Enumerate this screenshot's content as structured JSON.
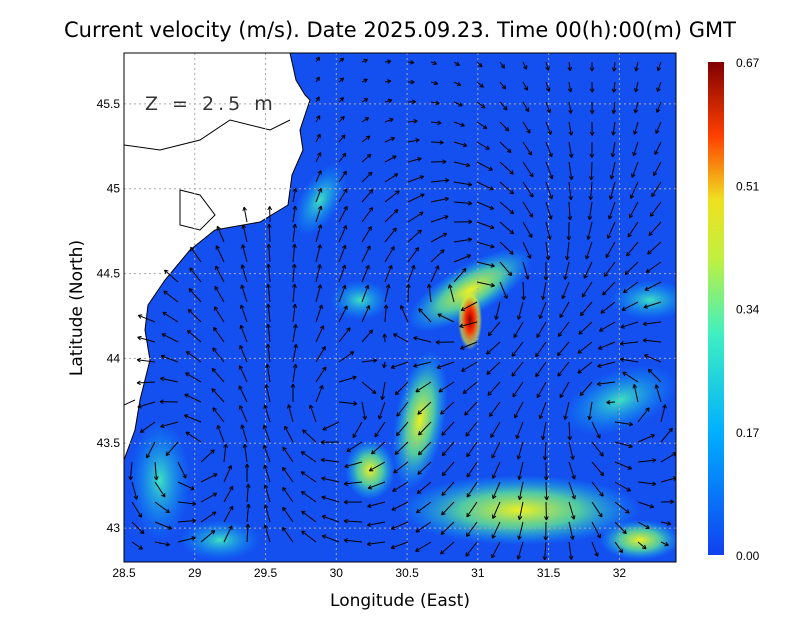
{
  "title": "Current velocity (m/s). Date 2025.09.23. Time 00(h):00(m) GMT",
  "depth_label": "Z = 2.5 m",
  "map": {
    "lon_range": [
      28.5,
      32.4
    ],
    "lat_range": [
      42.8,
      45.8
    ],
    "grid": true,
    "xlabel": "Longitude (East)",
    "ylabel": "Latitude (North)",
    "x_ticks": [
      "28.5",
      "29",
      "29.5",
      "30",
      "30.5",
      "31",
      "31.5",
      "32"
    ],
    "y_ticks": [
      "45.5",
      "45",
      "44.5",
      "44",
      "43.5",
      "43"
    ],
    "land_color": "#ffffff",
    "sea_min_color": "#1450f0"
  },
  "colorbar": {
    "min": 0.0,
    "max": 0.67,
    "labels": [
      "0.67",
      "0.51",
      "0.34",
      "0.17",
      "0.00"
    ],
    "colors": [
      "#1040f0",
      "#00c8ff",
      "#60f0a0",
      "#f0f020",
      "#ff6000",
      "#e00000",
      "#800000"
    ]
  }
}
